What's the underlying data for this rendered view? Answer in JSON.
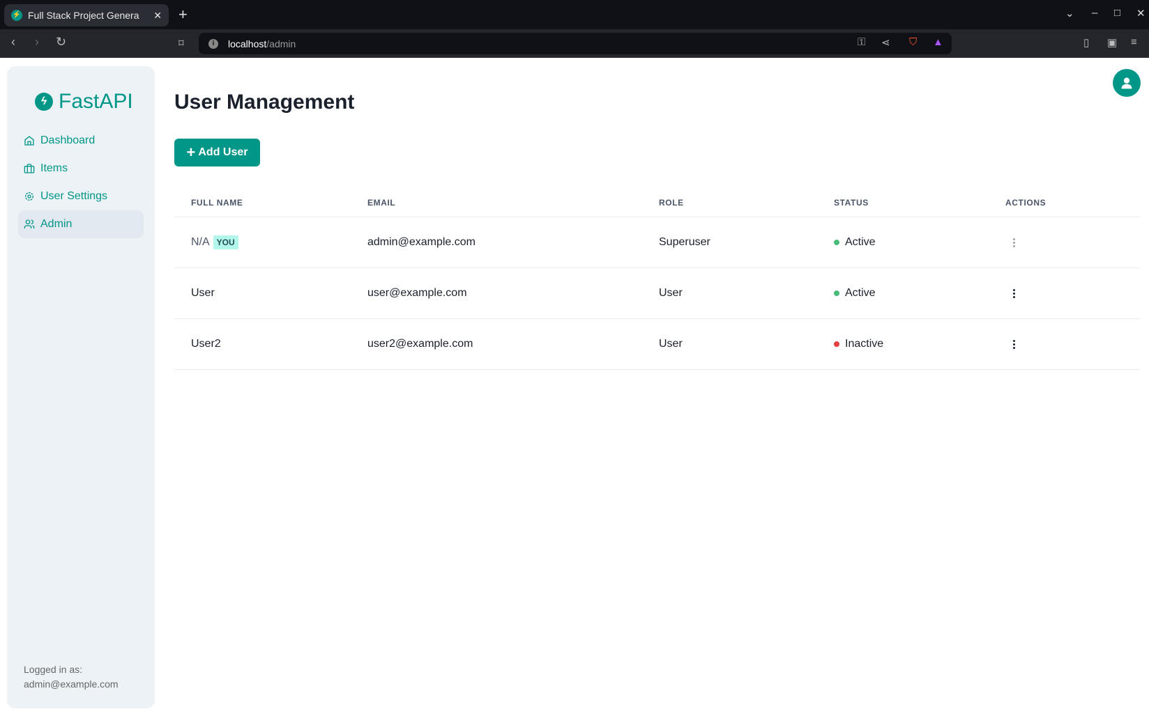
{
  "browser": {
    "tab_title": "Full Stack Project Genera",
    "url_host": "localhost",
    "url_path": "/admin"
  },
  "sidebar": {
    "logo": "FastAPI",
    "items": [
      {
        "label": "Dashboard",
        "icon": "home-icon"
      },
      {
        "label": "Items",
        "icon": "briefcase-icon"
      },
      {
        "label": "User Settings",
        "icon": "gear-icon"
      },
      {
        "label": "Admin",
        "icon": "users-icon",
        "active": true
      }
    ],
    "logged_in_label": "Logged in as:",
    "logged_in_email": "admin@example.com"
  },
  "main": {
    "title": "User Management",
    "add_button": "Add User",
    "columns": [
      "FULL NAME",
      "EMAIL",
      "ROLE",
      "STATUS",
      "ACTIONS"
    ],
    "rows": [
      {
        "full_name": "N/A",
        "you_badge": "YOU",
        "email": "admin@example.com",
        "role": "Superuser",
        "status": "Active",
        "status_color": "#48bb78",
        "actions_disabled": true
      },
      {
        "full_name": "User",
        "email": "user@example.com",
        "role": "User",
        "status": "Active",
        "status_color": "#48bb78",
        "actions_disabled": false
      },
      {
        "full_name": "User2",
        "email": "user2@example.com",
        "role": "User",
        "status": "Inactive",
        "status_color": "#e53e3e",
        "actions_disabled": false
      }
    ]
  },
  "colors": {
    "accent": "#009688"
  }
}
